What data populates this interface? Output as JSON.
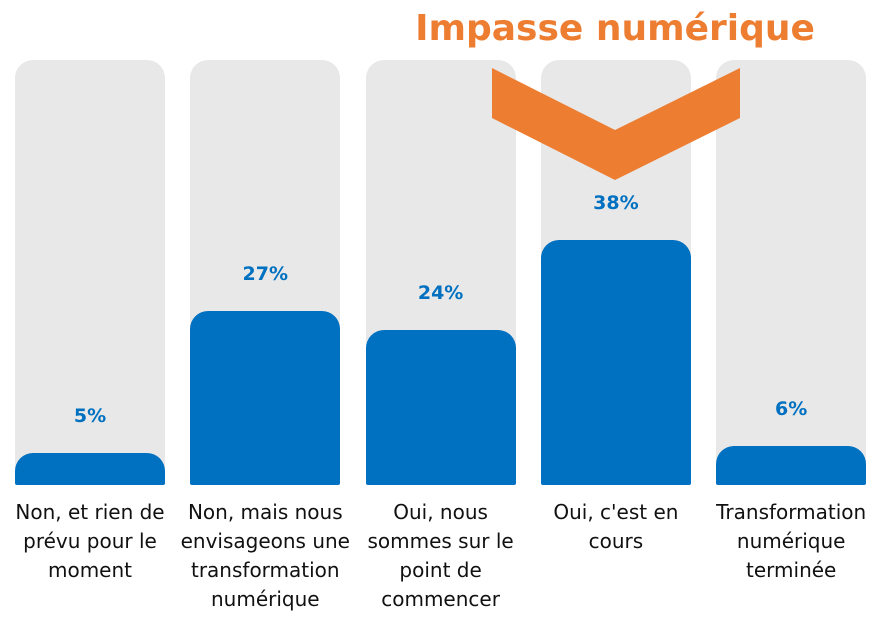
{
  "chart_data": {
    "type": "bar",
    "annotation": "Impasse numérique",
    "categories": [
      "Non, et rien de prévu pour le moment",
      "Non, mais nous envisageons une transformation numérique",
      "Oui, nous sommes sur le point de commencer",
      "Oui, c'est en cours",
      "Transformation numérique terminée"
    ],
    "values": [
      5,
      27,
      24,
      38,
      6
    ],
    "value_labels": [
      "5%",
      "27%",
      "24%",
      "38%",
      "6%"
    ],
    "color": "#0070c0"
  }
}
